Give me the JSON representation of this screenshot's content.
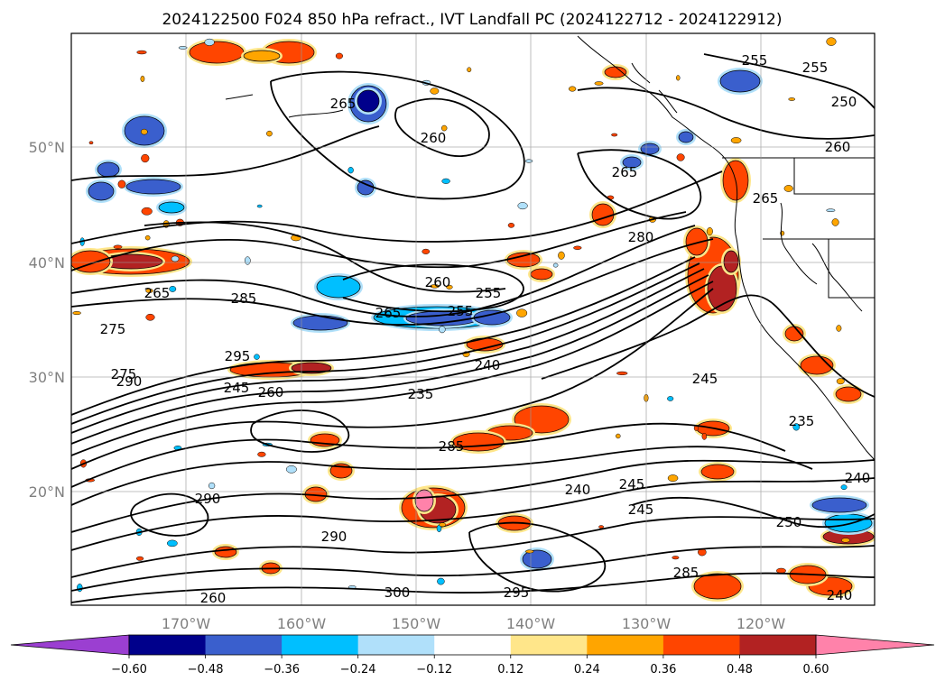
{
  "title": "2024122500 F024 850 hPa refract., IVT Landfall PC (2024122712 - 2024122912)",
  "map": {
    "lon_labels": [
      "170°W",
      "160°W",
      "150°W",
      "140°W",
      "130°W",
      "120°W"
    ],
    "lat_labels": [
      "50°N",
      "40°N",
      "30°N",
      "20°N"
    ],
    "contour_labels": [
      "255",
      "255",
      "265",
      "250",
      "260",
      "260",
      "265",
      "265",
      "280",
      "275",
      "265",
      "285",
      "260",
      "255",
      "265",
      "255",
      "275",
      "295",
      "290",
      "245",
      "235",
      "245",
      "240",
      "240",
      "260",
      "285",
      "235",
      "290",
      "240",
      "245",
      "245",
      "250",
      "290",
      "285",
      "295",
      "300",
      "260",
      "240"
    ]
  },
  "colorbar": {
    "ticks": [
      "−0.60",
      "−0.48",
      "−0.36",
      "−0.24",
      "−0.12",
      "0.12",
      "0.24",
      "0.36",
      "0.48",
      "0.60"
    ],
    "colors": [
      "#9b3fd1",
      "#00008b",
      "#3a5fcd",
      "#00bfff",
      "#b0e0fa",
      "#ffffff",
      "#ffe68a",
      "#ffa500",
      "#ff4500",
      "#b22222",
      "#ff82aa"
    ]
  }
}
